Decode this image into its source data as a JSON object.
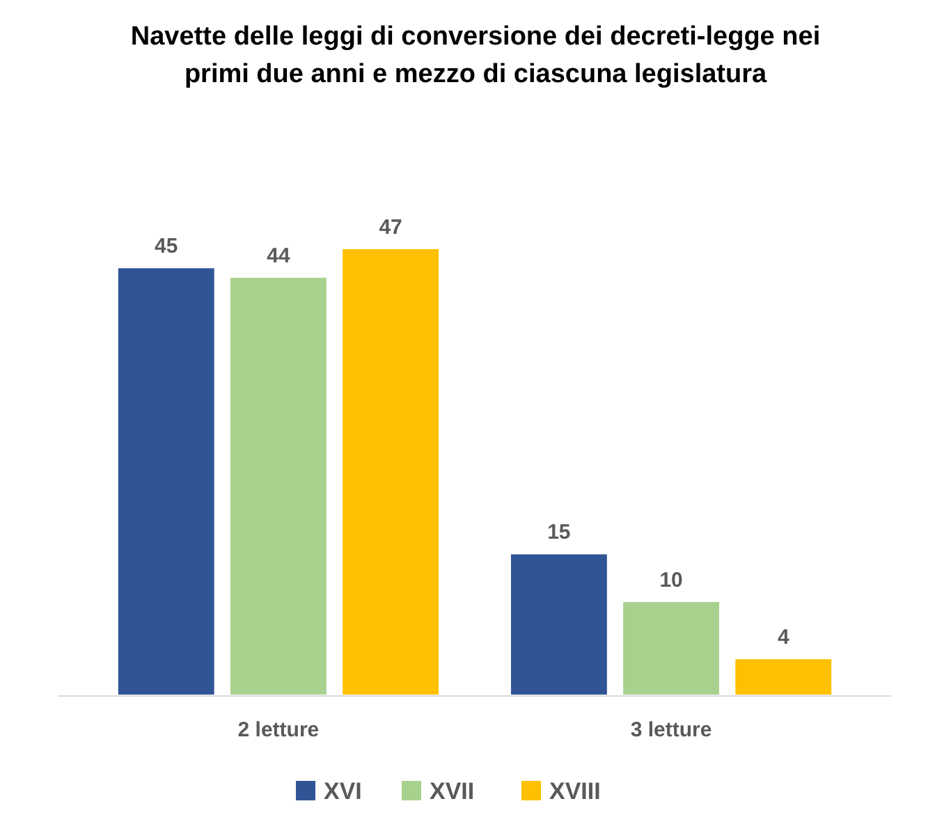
{
  "chart_data": {
    "type": "bar",
    "title": "Navette delle leggi di conversione dei decreti-legge nei primi due anni e mezzo di ciascuna legislatura",
    "categories": [
      "2 letture",
      "3 letture"
    ],
    "series": [
      {
        "name": "XVI",
        "color": "#2f5597",
        "values": [
          45,
          15
        ]
      },
      {
        "name": "XVII",
        "color": "#a9d18e",
        "values": [
          44,
          10
        ]
      },
      {
        "name": "XVIII",
        "color": "#ffc000",
        "values": [
          47,
          4
        ]
      }
    ],
    "data_labels": true,
    "legend": "bottom"
  }
}
